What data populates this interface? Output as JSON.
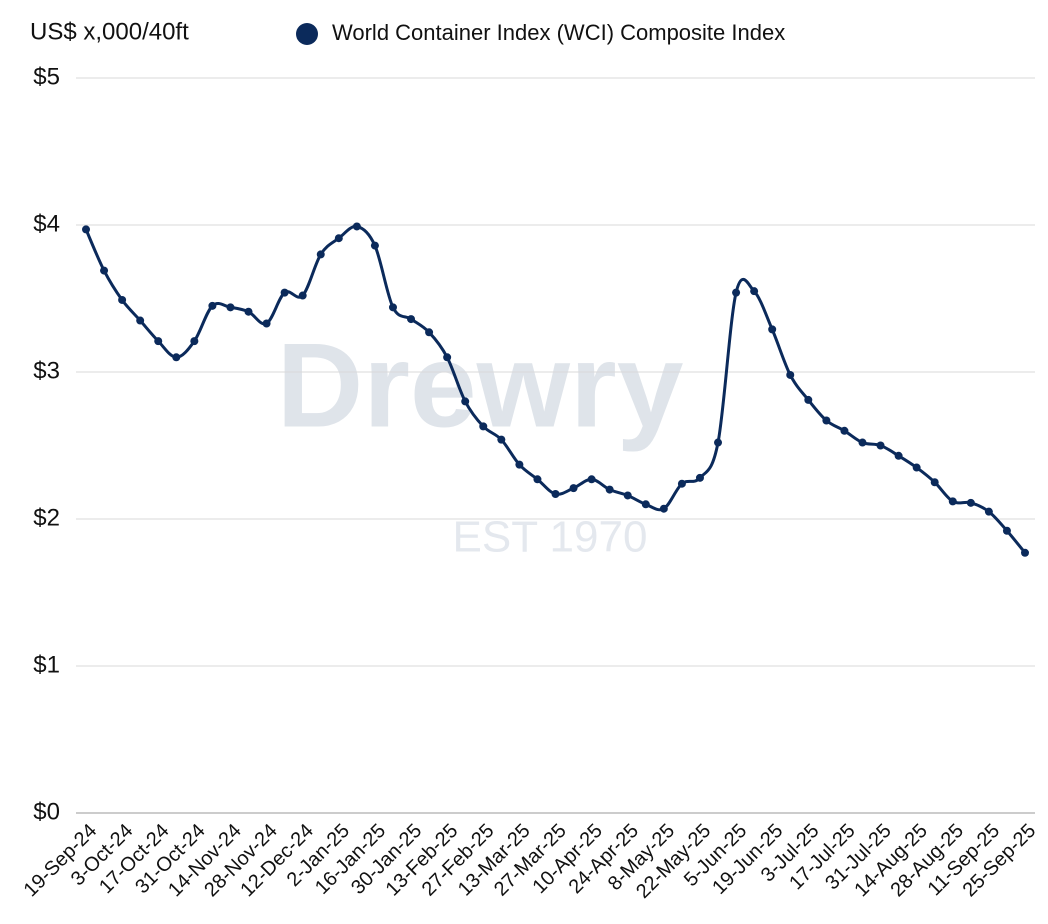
{
  "chart_data": {
    "type": "line",
    "y_axis_label": "US$ x,000/40ft",
    "watermark": [
      "Drewry",
      "EST 1970"
    ],
    "categories": [
      "19-Sep-24",
      null,
      "3-Oct-24",
      null,
      "17-Oct-24",
      null,
      "31-Oct-24",
      null,
      "14-Nov-24",
      null,
      "28-Nov-24",
      null,
      "12-Dec-24",
      null,
      "2-Jan-25",
      null,
      "16-Jan-25",
      null,
      "30-Jan-25",
      null,
      "13-Feb-25",
      null,
      "27-Feb-25",
      null,
      "13-Mar-25",
      null,
      "27-Mar-25",
      null,
      "10-Apr-25",
      null,
      "24-Apr-25",
      null,
      "8-May-25",
      null,
      "22-May-25",
      null,
      "5-Jun-25",
      null,
      "19-Jun-25",
      null,
      "3-Jul-25",
      null,
      "17-Jul-25",
      null,
      "31-Jul-25",
      null,
      "14-Aug-25",
      null,
      "28-Aug-25",
      null,
      "11-Sep-25",
      null,
      "25-Sep-25"
    ],
    "series": [
      {
        "name": "World Container Index (WCI) Composite Index",
        "color": "#0b2a5b",
        "values": [
          3.97,
          3.69,
          3.49,
          3.35,
          3.21,
          3.1,
          3.21,
          3.45,
          3.44,
          3.41,
          3.33,
          3.54,
          3.52,
          3.8,
          3.91,
          3.99,
          3.86,
          3.44,
          3.36,
          3.27,
          3.1,
          2.8,
          2.63,
          2.54,
          2.37,
          2.27,
          2.17,
          2.21,
          2.27,
          2.2,
          2.16,
          2.1,
          2.07,
          2.24,
          2.28,
          2.52,
          3.54,
          3.55,
          3.29,
          2.98,
          2.81,
          2.67,
          2.6,
          2.52,
          2.5,
          2.43,
          2.35,
          2.25,
          2.12,
          2.11,
          2.05,
          1.92,
          1.77
        ]
      }
    ],
    "ylim": [
      0,
      5
    ],
    "yticks": [
      {
        "value": 0,
        "label": "$0"
      },
      {
        "value": 1,
        "label": "$1"
      },
      {
        "value": 2,
        "label": "$2"
      },
      {
        "value": 3,
        "label": "$3"
      },
      {
        "value": 4,
        "label": "$4"
      },
      {
        "value": 5,
        "label": "$5"
      }
    ],
    "grid": true
  }
}
